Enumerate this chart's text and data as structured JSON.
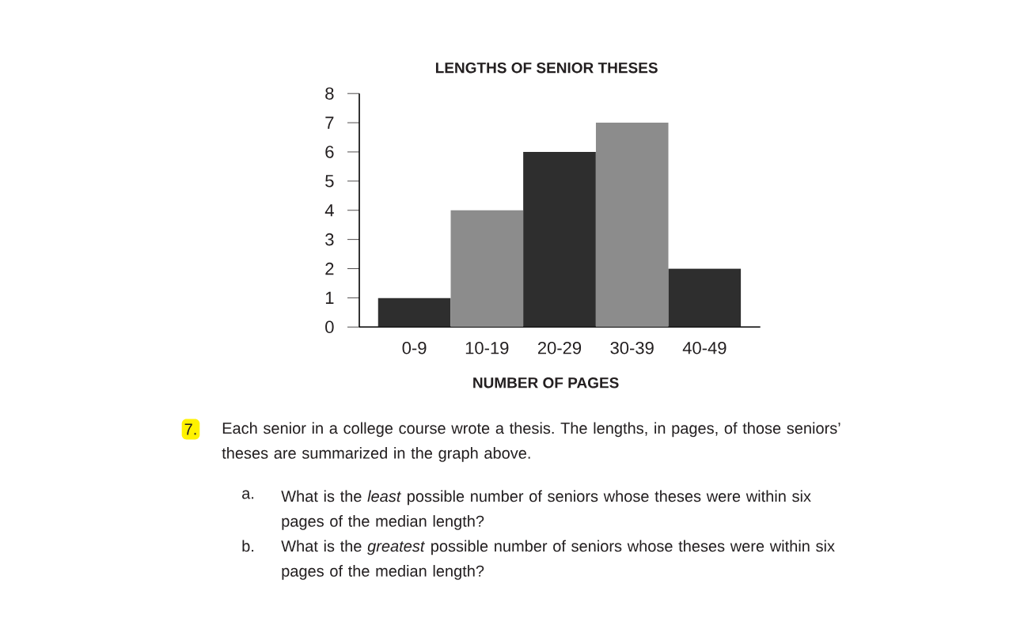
{
  "chart_data": {
    "type": "bar",
    "title": "LENGTHS OF SENIOR THESES",
    "xlabel": "NUMBER OF PAGES",
    "categories": [
      "0-9",
      "10-19",
      "20-29",
      "30-39",
      "40-49"
    ],
    "values": [
      1,
      4,
      6,
      7,
      2
    ],
    "colors": [
      "#2e2e2e",
      "#8c8c8c",
      "#2e2e2e",
      "#8c8c8c",
      "#2e2e2e"
    ],
    "ylim": [
      0,
      8
    ],
    "yticks": [
      0,
      1,
      2,
      3,
      4,
      5,
      6,
      7,
      8
    ],
    "annotations": [
      "7.",
      "Each senior in a college course wrote a thesis. The lengths, in pages, of those seniors’ theses are summarized in the graph above.",
      "a.",
      "What is the *least* possible number of seniors whose theses were within six pages of the median length?",
      "b.",
      "What is the *greatest* possible number of seniors whose theses were within six pages of the median length?"
    ]
  }
}
